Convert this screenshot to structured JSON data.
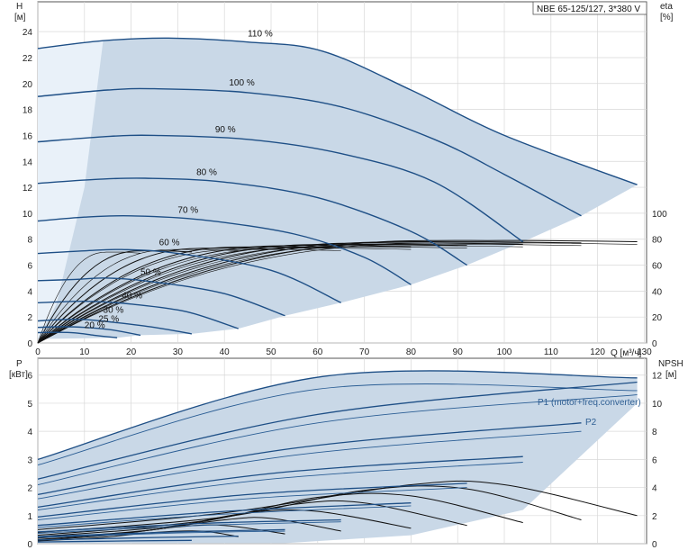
{
  "chart_data": [
    {
      "type": "line",
      "title": "NBE 65-125/127, 3*380 V",
      "ylabel_left": "H",
      "ylabel_left_unit": "[м]",
      "ylabel_right": "eta",
      "ylabel_right_unit": "[%]",
      "xlabel": "Q [м³/ч]",
      "xlim": [
        0,
        130
      ],
      "ylim_left": [
        0,
        24
      ],
      "ylim_right": [
        0,
        100
      ],
      "x_ticks": [
        "0",
        "10",
        "20",
        "30",
        "40",
        "50",
        "60",
        "70",
        "80",
        "90",
        "100",
        "110",
        "120",
        "130"
      ],
      "y_ticks_left": [
        "0",
        "2",
        "4",
        "6",
        "8",
        "10",
        "12",
        "14",
        "16",
        "18",
        "20",
        "22",
        "24"
      ],
      "y_ticks_right": [
        "0",
        "20",
        "40",
        "60",
        "80",
        "100"
      ],
      "series": [
        {
          "name": "110 %",
          "x": [
            0,
            14,
            28,
            45,
            61,
            80,
            100,
            128.5
          ],
          "values": [
            22.7,
            23.3,
            23.5,
            23.2,
            22.5,
            19.5,
            16.0,
            12.2
          ]
        },
        {
          "name": "100 %",
          "x": [
            0,
            15,
            25,
            45,
            65,
            85,
            100,
            116.5
          ],
          "values": [
            19.0,
            19.5,
            19.6,
            19.3,
            18.2,
            15.7,
            13.0,
            9.8
          ]
        },
        {
          "name": "90 %",
          "x": [
            0,
            14,
            25,
            45,
            65,
            85,
            104
          ],
          "values": [
            15.5,
            15.9,
            16.0,
            15.7,
            14.6,
            12.4,
            7.8
          ]
        },
        {
          "name": "80 %",
          "x": [
            0,
            12,
            23,
            40,
            60,
            80,
            92
          ],
          "values": [
            12.3,
            12.6,
            12.7,
            12.4,
            11.2,
            8.6,
            6.0
          ]
        },
        {
          "name": "70 %",
          "x": [
            0,
            10,
            20,
            35,
            55,
            70,
            80
          ],
          "values": [
            9.4,
            9.7,
            9.8,
            9.5,
            8.4,
            6.6,
            4.5
          ]
        },
        {
          "name": "60 %",
          "x": [
            0,
            10,
            18,
            30,
            50,
            65
          ],
          "values": [
            6.9,
            7.1,
            7.2,
            6.9,
            5.6,
            3.1
          ]
        },
        {
          "name": "50 %",
          "x": [
            0,
            8,
            15,
            25,
            40,
            53
          ],
          "values": [
            4.8,
            4.9,
            5.0,
            4.7,
            3.8,
            2.1
          ]
        },
        {
          "name": "40 %",
          "x": [
            0,
            7,
            12,
            20,
            32,
            43
          ],
          "values": [
            3.1,
            3.2,
            3.2,
            3.0,
            2.4,
            1.1
          ]
        },
        {
          "name": "30 %",
          "x": [
            0,
            5,
            10,
            16,
            25,
            33
          ],
          "values": [
            1.7,
            1.8,
            1.8,
            1.6,
            1.2,
            0.7
          ]
        },
        {
          "name": "25 %",
          "x": [
            0,
            5,
            10,
            16,
            22
          ],
          "values": [
            1.2,
            1.25,
            1.2,
            1.0,
            0.6
          ]
        },
        {
          "name": "20 %",
          "x": [
            0,
            4,
            8,
            12,
            17
          ],
          "values": [
            0.8,
            0.82,
            0.78,
            0.6,
            0.4
          ]
        }
      ],
      "curve_labels": [
        {
          "text": "110 %",
          "x": 45,
          "y": 23.5
        },
        {
          "text": "100 %",
          "x": 41,
          "y": 19.7
        },
        {
          "text": "90 %",
          "x": 38,
          "y": 16.1
        },
        {
          "text": "80 %",
          "x": 34,
          "y": 12.8
        },
        {
          "text": "70 %",
          "x": 30,
          "y": 9.9
        },
        {
          "text": "60 %",
          "x": 26,
          "y": 7.4
        },
        {
          "text": "50 %",
          "x": 22,
          "y": 5.1
        },
        {
          "text": "40 %",
          "x": 18,
          "y": 3.3
        },
        {
          "text": "30 %",
          "x": 14,
          "y": 2.2
        },
        {
          "text": "25 %",
          "x": 13,
          "y": 1.5
        },
        {
          "text": "20 %",
          "x": 10,
          "y": 1.0
        }
      ],
      "efficiency_curves": [
        {
          "end_x": 128.5,
          "peak": 79
        },
        {
          "end_x": 128.5,
          "peak": 77
        },
        {
          "end_x": 116.5,
          "peak": 78
        },
        {
          "end_x": 116.5,
          "peak": 76
        },
        {
          "end_x": 104,
          "peak": 77
        },
        {
          "end_x": 104,
          "peak": 75
        },
        {
          "end_x": 92,
          "peak": 76
        },
        {
          "end_x": 92,
          "peak": 74
        },
        {
          "end_x": 80,
          "peak": 75
        },
        {
          "end_x": 80,
          "peak": 73
        },
        {
          "end_x": 65,
          "peak": 74
        },
        {
          "end_x": 65,
          "peak": 72
        },
        {
          "end_x": 53,
          "peak": 73
        },
        {
          "end_x": 43,
          "peak": 72
        },
        {
          "end_x": 33,
          "peak": 71
        },
        {
          "end_x": 22,
          "peak": 70
        }
      ],
      "region_color": "#c9d8e7",
      "region_color_light": "#e9f1f9",
      "curve_color": "#1e4f86"
    },
    {
      "type": "line",
      "ylabel_left": "P",
      "ylabel_left_unit": "[кВт]",
      "ylabel_right": "NPSH",
      "ylabel_right_unit": "[м]",
      "xlim": [
        0,
        130
      ],
      "ylim_left": [
        0,
        6.6
      ],
      "ylim_right": [
        0,
        13.2
      ],
      "y_ticks_left": [
        "0",
        "1",
        "2",
        "3",
        "4",
        "5",
        "6"
      ],
      "y_ticks_right": [
        "0",
        "2",
        "4",
        "6",
        "8",
        "10",
        "12"
      ],
      "legend_labels": [
        "P1 (motor+freq.converter)",
        "P2"
      ],
      "series_p1": [
        {
          "x": [
            0,
            61,
            128.5
          ],
          "values": [
            3.0,
            5.95,
            5.9
          ]
        },
        {
          "x": [
            0,
            60,
            128.5
          ],
          "values": [
            2.3,
            4.6,
            5.75
          ]
        },
        {
          "x": [
            0,
            55,
            116.5
          ],
          "values": [
            1.75,
            3.4,
            4.3
          ]
        },
        {
          "x": [
            0,
            50,
            104
          ],
          "values": [
            1.3,
            2.5,
            3.1
          ]
        },
        {
          "x": [
            0,
            45,
            92
          ],
          "values": [
            0.95,
            1.75,
            2.15
          ]
        },
        {
          "x": [
            0,
            40,
            80
          ],
          "values": [
            0.65,
            1.15,
            1.45
          ]
        },
        {
          "x": [
            0,
            35,
            65
          ],
          "values": [
            0.42,
            0.72,
            0.85
          ]
        },
        {
          "x": [
            0,
            30,
            53
          ],
          "values": [
            0.25,
            0.42,
            0.5
          ]
        },
        {
          "x": [
            0,
            25,
            43
          ],
          "values": [
            0.13,
            0.22,
            0.27
          ]
        },
        {
          "x": [
            0,
            20,
            33
          ],
          "values": [
            0.06,
            0.1,
            0.12
          ]
        }
      ],
      "series_p2": [
        {
          "x": [
            0,
            60,
            128.5
          ],
          "values": [
            2.8,
            5.5,
            5.45
          ]
        },
        {
          "x": [
            0,
            60,
            128.5
          ],
          "values": [
            2.1,
            4.3,
            5.3
          ]
        },
        {
          "x": [
            0,
            55,
            116.5
          ],
          "values": [
            1.6,
            3.15,
            4.0
          ]
        },
        {
          "x": [
            0,
            50,
            104
          ],
          "values": [
            1.2,
            2.3,
            2.9
          ]
        },
        {
          "x": [
            0,
            45,
            92
          ],
          "values": [
            0.85,
            1.6,
            2.0
          ]
        },
        {
          "x": [
            0,
            40,
            80
          ],
          "values": [
            0.58,
            1.05,
            1.35
          ]
        },
        {
          "x": [
            0,
            35,
            65
          ],
          "values": [
            0.37,
            0.65,
            0.78
          ]
        },
        {
          "x": [
            0,
            30,
            53
          ],
          "values": [
            0.22,
            0.38,
            0.45
          ]
        }
      ],
      "npsh_curves": [
        {
          "x": [
            0,
            40,
            80,
            100,
            128.5
          ],
          "values": [
            1.0,
            2.2,
            4.2,
            4.2,
            2.0
          ]
        },
        {
          "x": [
            0,
            40,
            70,
            92,
            116.5
          ],
          "values": [
            0.8,
            1.9,
            3.8,
            3.9,
            1.7
          ]
        },
        {
          "x": [
            0,
            35,
            60,
            80,
            104
          ],
          "values": [
            0.6,
            1.6,
            3.3,
            3.4,
            1.5
          ]
        },
        {
          "x": [
            0,
            30,
            55,
            70,
            92
          ],
          "values": [
            0.5,
            1.3,
            2.8,
            2.9,
            1.3
          ]
        },
        {
          "x": [
            0,
            25,
            45,
            60,
            80
          ],
          "values": [
            0.4,
            1.0,
            2.2,
            2.3,
            1.1
          ]
        },
        {
          "x": [
            0,
            20,
            40,
            50,
            65
          ],
          "values": [
            0.3,
            0.8,
            1.7,
            1.8,
            0.9
          ]
        },
        {
          "x": [
            0,
            15,
            30,
            40,
            53
          ],
          "values": [
            0.25,
            0.6,
            1.2,
            1.3,
            0.7
          ]
        },
        {
          "x": [
            0,
            12,
            25,
            35,
            43
          ],
          "values": [
            0.2,
            0.4,
            0.8,
            0.9,
            0.5
          ]
        }
      ]
    }
  ]
}
